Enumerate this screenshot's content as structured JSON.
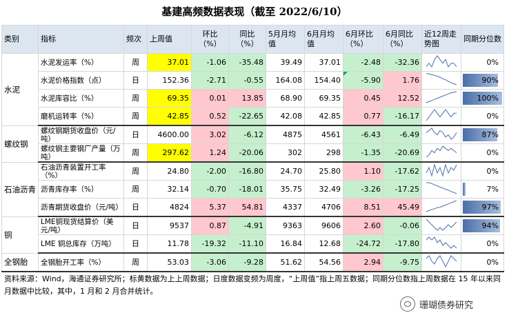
{
  "title": "基建高频数据表现（截至 2022/6/10）",
  "headers": [
    "类别",
    "指标",
    "频次",
    "上周值",
    "环比（%）",
    "同比（%）",
    "5月月均值",
    "6月月均值",
    "6月环比（%）",
    "6月同比（%）",
    "近12周走势图",
    "同期分位数"
  ],
  "groups": [
    {
      "name": "水泥",
      "rows": [
        {
          "indicator": "水泥发运率（%）",
          "freq": "周",
          "last": "37.01",
          "wow": "-1.06",
          "yoy": "-35.48",
          "may": "39.49",
          "jun": "37.01",
          "jun_mom": "-2.48",
          "jun_yoy": "-32.36",
          "pct": "0%",
          "pct_value": 0,
          "trend": [
            5,
            6,
            5,
            7,
            8,
            7,
            6,
            7,
            5,
            6,
            6,
            5
          ]
        },
        {
          "indicator": "水泥价格指数（点）",
          "freq": "日",
          "last": "152.36",
          "wow": "-2.71",
          "yoy": "-0.55",
          "may": "164.08",
          "jun": "154.40",
          "jun_mom": "-5.90",
          "jun_yoy": "1.76",
          "pct": "90%",
          "pct_value": 0.9,
          "trend": [
            10,
            10,
            9.8,
            9.7,
            9.5,
            9.3,
            9,
            8.8,
            8.5,
            8.2,
            8,
            7.8
          ]
        },
        {
          "indicator": "水泥库容比（%）",
          "freq": "周",
          "last": "69.35",
          "wow": "0.01",
          "yoy": "13.85",
          "may": "68.90",
          "jun": "69.35",
          "jun_mom": "0.45",
          "jun_yoy": "12.52",
          "pct": "100%",
          "pct_value": 1.0,
          "trend": [
            3,
            3.5,
            4,
            4.5,
            5,
            5.5,
            6,
            6.5,
            7,
            7.5,
            7.8,
            8
          ]
        },
        {
          "indicator": "磨机运转率（%）",
          "freq": "周",
          "last": "42.85",
          "wow": "0.52",
          "yoy": "-22.65",
          "may": "42.08",
          "jun": "42.85",
          "jun_mom": "0.77",
          "jun_yoy": "-16.17",
          "pct": "0%",
          "pct_value": 0,
          "trend": [
            4,
            5,
            6,
            7,
            6,
            5,
            6,
            7,
            6,
            5,
            6,
            6
          ]
        }
      ]
    },
    {
      "name": "螺纹钢",
      "rows": [
        {
          "indicator": "螺纹钢期货收盘价（元/吨）",
          "freq": "日",
          "last": "4600.00",
          "wow": "3.02",
          "yoy": "-6.12",
          "may": "4875",
          "jun": "4561",
          "jun_mom": "-6.43",
          "jun_yoy": "-6.49",
          "pct": "87%",
          "pct_value": 0.87,
          "trend": [
            6,
            7,
            8,
            6,
            5,
            7,
            6,
            4,
            5,
            3,
            4,
            6
          ]
        },
        {
          "indicator": "螺纹钢主要钢厂产量（万吨）",
          "freq": "周",
          "last": "297.62",
          "wow": "1.24",
          "yoy": "-20.06",
          "may": "302",
          "jun": "298",
          "jun_mom": "-1.35",
          "jun_yoy": "-20.69",
          "pct": "0%",
          "pct_value": 0,
          "trend": [
            3,
            4,
            6,
            5,
            7,
            6,
            8,
            7,
            6,
            7,
            6,
            5
          ]
        }
      ]
    },
    {
      "name": "石油沥青",
      "rows": [
        {
          "indicator": "石油沥青装置开工率（%）",
          "freq": "周",
          "last": "24.80",
          "wow": "-2.00",
          "yoy": "-16.80",
          "may": "24.70",
          "jun": "25.80",
          "jun_mom": "1.10",
          "jun_yoy": "-17.62",
          "pct": "0%",
          "pct_value": 0,
          "trend": [
            4,
            6,
            3,
            7,
            4,
            6,
            3,
            7,
            4,
            6,
            5,
            7
          ]
        },
        {
          "indicator": "沥青库存率（%）",
          "freq": "周",
          "last": "32.14",
          "wow": "-0.70",
          "yoy": "-18.01",
          "may": "35.75",
          "jun": "32.49",
          "jun_mom": "-3.26",
          "jun_yoy": "-17.25",
          "pct": "7%",
          "pct_value": 0.07,
          "trend": [
            8,
            8,
            7.8,
            7.5,
            7.3,
            7,
            6.8,
            6.5,
            6.3,
            6,
            5.8,
            5.5
          ]
        },
        {
          "indicator": "沥青期货收盘价（元/吨）",
          "freq": "日",
          "last": "4824",
          "wow": "5.37",
          "yoy": "54.81",
          "may": "4337",
          "jun": "4706",
          "jun_mom": "8.51",
          "jun_yoy": "45.49",
          "pct": "97%",
          "pct_value": 0.97,
          "trend": [
            3,
            3.5,
            4,
            4.3,
            4.8,
            5,
            5.5,
            6,
            6.5,
            7,
            7.5,
            8
          ]
        }
      ]
    },
    {
      "name": "铜",
      "rows": [
        {
          "indicator": "LME铜现货结算价（美元/吨）",
          "freq": "日",
          "last": "9537",
          "wow": "0.87",
          "yoy": "-4.91",
          "may": "9363",
          "jun": "9606",
          "jun_mom": "2.60",
          "jun_yoy": "-0.06",
          "pct": "94%",
          "pct_value": 0.94,
          "trend": [
            8,
            7,
            6,
            5,
            4,
            5,
            4,
            5,
            6,
            5,
            6,
            7
          ]
        },
        {
          "indicator": "LME 铜总库存（万吨）",
          "freq": "日",
          "last": "11.78",
          "wow": "-19.32",
          "yoy": "-11.10",
          "may": "16.84",
          "jun": "12.68",
          "jun_mom": "-24.72",
          "jun_yoy": "-17.80",
          "pct": "0%",
          "pct_value": 0,
          "trend": [
            7,
            8,
            7,
            8,
            6,
            7,
            5,
            6,
            5,
            4,
            5,
            4
          ]
        }
      ]
    },
    {
      "name": "全钢胎",
      "rows": [
        {
          "indicator": "全钢胎开工率（%）",
          "freq": "周",
          "last": "53.03",
          "wow": "-3.06",
          "yoy": "-9.28",
          "may": "51.62",
          "jun": "54.56",
          "jun_mom": "2.94",
          "jun_yoy": "-9.75",
          "pct": "0%",
          "pct_value": 0,
          "trend": [
            6,
            7,
            5,
            4,
            6,
            7,
            5,
            3,
            5,
            7,
            6,
            5
          ]
        }
      ]
    }
  ],
  "colors": {
    "yellow": "#ffff00",
    "green": "#c6efce",
    "red": "#ffc7ce",
    "header": "#dce6f1",
    "bar": "#4a6ea8"
  },
  "note": "资料来源：Wind，海通证券研究所；标黄数据为上上周数据；日度数据变频为周度，“上周值”指上周五数据；同期分位数指上周数据在 15 年以来同月数据中比较，其中，1 月和 2 月合并统计。",
  "watermark": {
    "icon": "wechat-icon",
    "text": "珊瑚债券研究"
  }
}
